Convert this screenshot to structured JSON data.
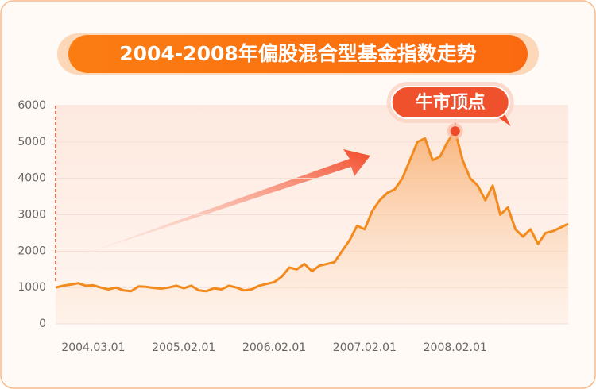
{
  "chart_data": {
    "type": "line",
    "title": "2004-2008年偏股混合型基金指数走势",
    "annotation": "牛市顶点",
    "categories": [
      null,
      null,
      null,
      null,
      null,
      "2004.03.01",
      null,
      null,
      null,
      null,
      null,
      null,
      null,
      null,
      null,
      null,
      null,
      "2005.02.01",
      null,
      null,
      null,
      null,
      null,
      null,
      null,
      null,
      null,
      null,
      null,
      "2006.02.01",
      null,
      null,
      null,
      null,
      null,
      null,
      null,
      null,
      null,
      null,
      null,
      "2007.02.01",
      null,
      null,
      null,
      null,
      null,
      null,
      null,
      null,
      null,
      null,
      null,
      "2008.02.01",
      null,
      null,
      null,
      null,
      null,
      null,
      null,
      null,
      null,
      null,
      null,
      null,
      null,
      null,
      null
    ],
    "values": [
      1000,
      1050,
      1080,
      1120,
      1050,
      1060,
      1000,
      950,
      1000,
      920,
      900,
      1030,
      1020,
      990,
      970,
      1000,
      1050,
      980,
      1050,
      920,
      900,
      980,
      950,
      1050,
      1000,
      920,
      950,
      1050,
      1100,
      1150,
      1300,
      1550,
      1500,
      1650,
      1450,
      1600,
      1650,
      1700,
      2000,
      2300,
      2700,
      2600,
      3100,
      3400,
      3600,
      3700,
      4000,
      4500,
      5000,
      5100,
      4500,
      4600,
      5000,
      5300,
      4500,
      4000,
      3800,
      3400,
      3800,
      3000,
      3200,
      2600,
      2400,
      2600,
      2200,
      2500,
      2550,
      2650,
      2750
    ],
    "color": "#f28a1e",
    "ylim": [
      0,
      6000
    ],
    "yticks": [
      0,
      1000,
      2000,
      3000,
      4000,
      5000,
      6000
    ],
    "grid": true
  }
}
